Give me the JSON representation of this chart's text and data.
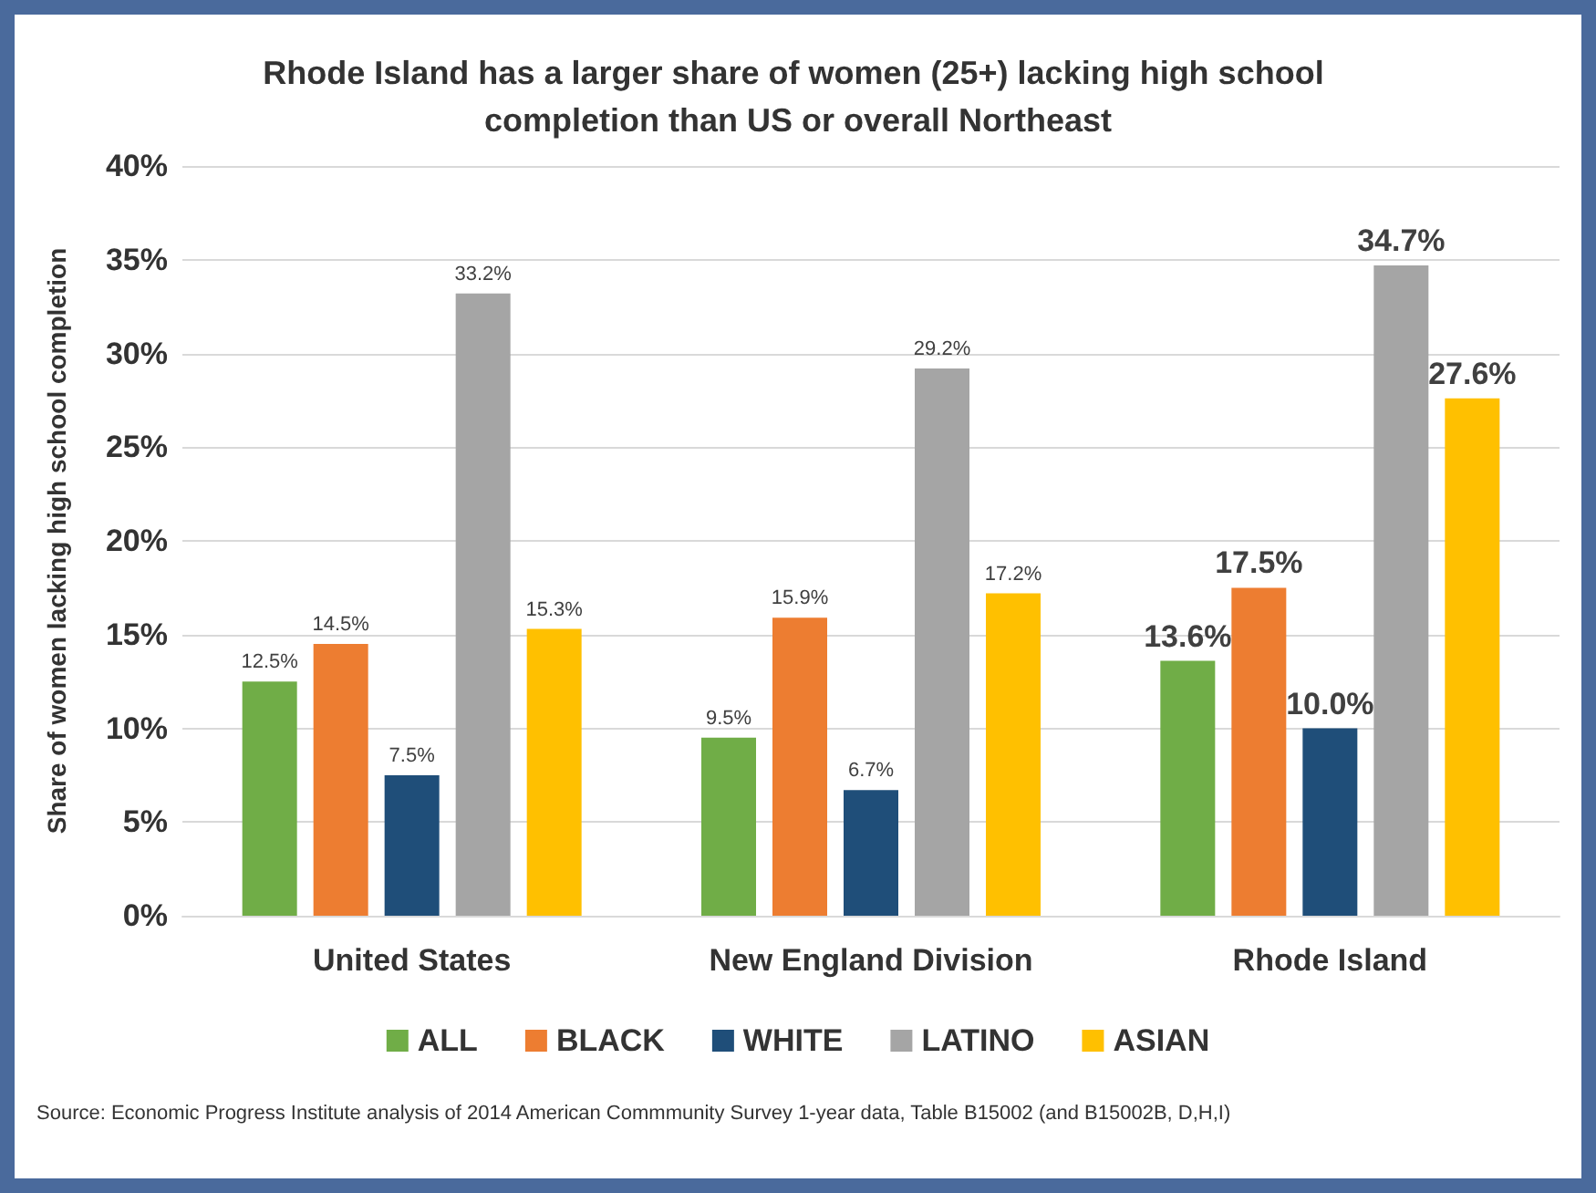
{
  "chart_data": {
    "type": "bar",
    "title": "Rhode Island has a larger share of women (25+) lacking high school completion than US or overall Northeast",
    "ylabel": "Share of women lacking high school completion",
    "categories": [
      "United States",
      "New England Division",
      "Rhode Island"
    ],
    "series": [
      {
        "name": "ALL",
        "color": "#70ad47",
        "values": [
          12.5,
          9.5,
          13.6
        ],
        "value_labels": [
          "12.5%",
          "9.5%",
          "13.6%"
        ]
      },
      {
        "name": "BLACK",
        "color": "#ed7d31",
        "values": [
          14.5,
          15.9,
          17.5
        ],
        "value_labels": [
          "14.5%",
          "15.9%",
          "17.5%"
        ]
      },
      {
        "name": "WHITE",
        "color": "#1f4e79",
        "values": [
          7.5,
          6.7,
          10.0
        ],
        "value_labels": [
          "7.5%",
          "6.7%",
          "10.0%"
        ]
      },
      {
        "name": "LATINO",
        "color": "#a5a5a5",
        "values": [
          33.2,
          29.2,
          34.7
        ],
        "value_labels": [
          "33.2%",
          "29.2%",
          "34.7%"
        ]
      },
      {
        "name": "ASIAN",
        "color": "#ffc000",
        "values": [
          15.3,
          17.2,
          27.6
        ],
        "value_labels": [
          "15.3%",
          "17.2%",
          "27.6%"
        ]
      }
    ],
    "ylim": [
      0,
      40
    ],
    "yticks": [
      {
        "value": 0,
        "label": "0%"
      },
      {
        "value": 5,
        "label": "5%"
      },
      {
        "value": 10,
        "label": "10%"
      },
      {
        "value": 15,
        "label": "15%"
      },
      {
        "value": 20,
        "label": "20%"
      },
      {
        "value": 25,
        "label": "25%"
      },
      {
        "value": 30,
        "label": "30%"
      },
      {
        "value": 35,
        "label": "35%"
      },
      {
        "value": 40,
        "label": "40%"
      }
    ],
    "grid": "y",
    "legend": "bottom",
    "annotations": [
      "Source: Economic Progress Institute analysis of 2014 American Commmunity Survey 1-year data, Table B15002 (and B15002B, D,H,I)"
    ]
  }
}
